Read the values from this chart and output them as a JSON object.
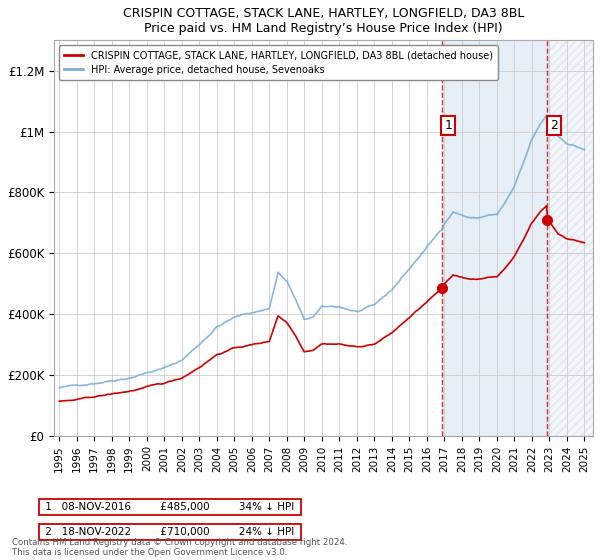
{
  "title": "CRISPIN COTTAGE, STACK LANE, HARTLEY, LONGFIELD, DA3 8BL",
  "subtitle": "Price paid vs. HM Land Registry’s House Price Index (HPI)",
  "ylabel_ticks": [
    "£0",
    "£200K",
    "£400K",
    "£600K",
    "£800K",
    "£1M",
    "£1.2M"
  ],
  "ylim": [
    0,
    1300000
  ],
  "yticks": [
    0,
    200000,
    400000,
    600000,
    800000,
    1000000,
    1200000
  ],
  "xlim_start": 1994.7,
  "xlim_end": 2025.5,
  "legend_label_red": "CRISPIN COTTAGE, STACK LANE, HARTLEY, LONGFIELD, DA3 8BL (detached house)",
  "legend_label_blue": "HPI: Average price, detached house, Sevenoaks",
  "sale1_x": 2016.86,
  "sale1_y": 485000,
  "sale1_label": "1",
  "sale2_x": 2022.88,
  "sale2_y": 710000,
  "sale2_label": "2",
  "footer": "Contains HM Land Registry data © Crown copyright and database right 2024.\nThis data is licensed under the Open Government Licence v3.0.",
  "red_color": "#cc0000",
  "blue_color": "#7bafd4",
  "bg_shaded": "#dce8f5",
  "vline_color": "#cc0000",
  "point_color": "#cc0000",
  "grid_color": "#cccccc",
  "hatch_color": "#bbccdd"
}
